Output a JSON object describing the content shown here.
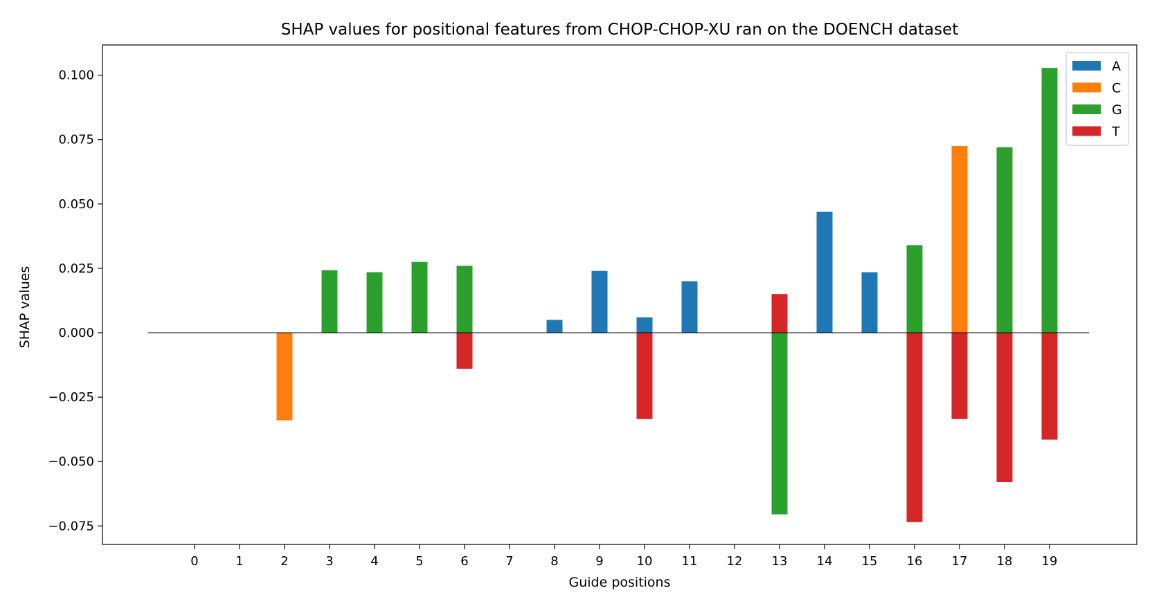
{
  "chart_data": {
    "type": "bar",
    "title": "SHAP values for positional features from CHOP-CHOP-XU ran on the DOENCH dataset",
    "xlabel": "Guide positions",
    "ylabel": "SHAP values",
    "categories": [
      "0",
      "1",
      "2",
      "3",
      "4",
      "5",
      "6",
      "7",
      "8",
      "9",
      "10",
      "11",
      "12",
      "13",
      "14",
      "15",
      "16",
      "17",
      "18",
      "19"
    ],
    "ylim": [
      -0.082,
      0.112
    ],
    "yticks": [
      "0.100",
      "0.075",
      "0.050",
      "0.025",
      "0.000",
      "−0.025",
      "−0.050",
      "−0.075"
    ],
    "ytick_values": [
      0.1,
      0.075,
      0.05,
      0.025,
      0.0,
      -0.025,
      -0.05,
      -0.075
    ],
    "legend_position": "top-right",
    "grid": false,
    "series": [
      {
        "name": "A",
        "color": "#1f77b4",
        "values": [
          null,
          null,
          null,
          null,
          null,
          null,
          null,
          null,
          0.005,
          0.024,
          0.006,
          0.02,
          null,
          null,
          0.047,
          0.0235,
          null,
          null,
          null,
          null
        ]
      },
      {
        "name": "C",
        "color": "#ff7f0e",
        "values": [
          null,
          null,
          -0.034,
          null,
          null,
          null,
          null,
          null,
          null,
          null,
          null,
          null,
          null,
          null,
          null,
          null,
          null,
          0.0725,
          null,
          null
        ]
      },
      {
        "name": "G",
        "color": "#2ca02c",
        "values": [
          null,
          null,
          null,
          0.0243,
          0.0235,
          0.0275,
          0.026,
          null,
          null,
          null,
          null,
          null,
          null,
          -0.0705,
          null,
          null,
          0.034,
          null,
          0.072,
          0.1028
        ]
      },
      {
        "name": "T",
        "color": "#d62728",
        "values": [
          null,
          null,
          null,
          null,
          null,
          null,
          -0.014,
          null,
          null,
          null,
          -0.0335,
          null,
          null,
          0.015,
          null,
          null,
          -0.0735,
          -0.0335,
          -0.058,
          -0.0415
        ]
      }
    ]
  }
}
